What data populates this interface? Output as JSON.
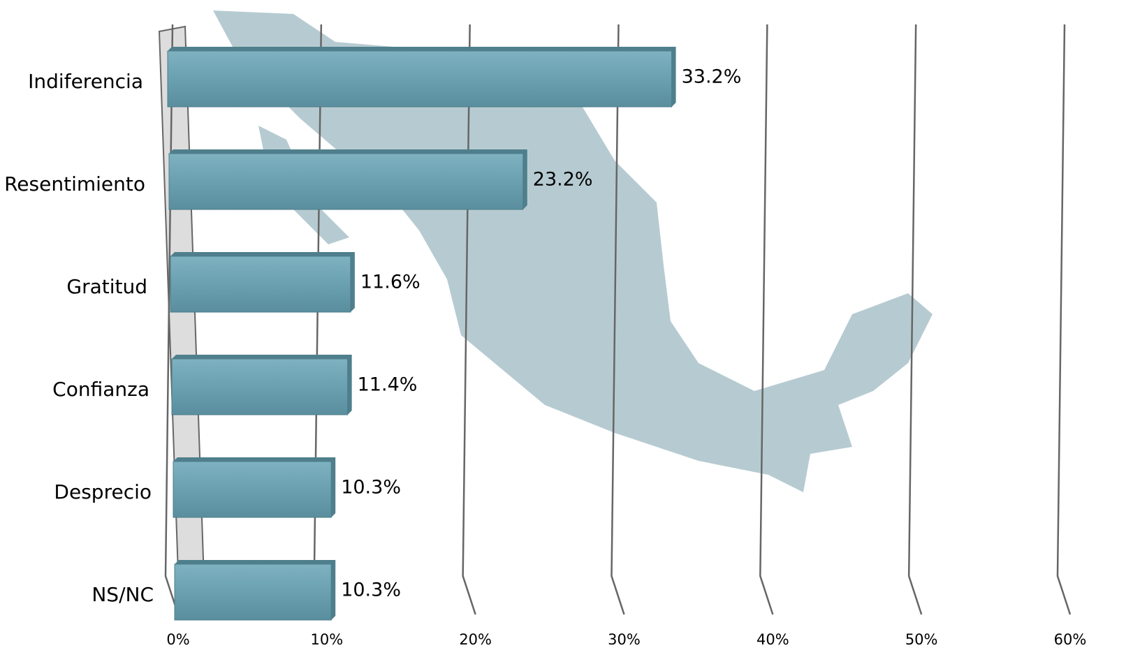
{
  "chart_data": {
    "type": "bar",
    "orientation": "horizontal",
    "categories": [
      "Indiferencia",
      "Resentimiento",
      "Gratitud",
      "Confianza",
      "Desprecio",
      "NS/NC"
    ],
    "values": [
      33.2,
      23.2,
      11.6,
      11.4,
      10.3,
      10.3
    ],
    "value_labels": [
      "33.2%",
      "23.2%",
      "11.6%",
      "11.4%",
      "10.3%",
      "10.3%"
    ],
    "color": "#6aa0b0",
    "xlim": [
      0,
      60
    ],
    "xticks": [
      {
        "value": 0,
        "label": "0%"
      },
      {
        "value": 10,
        "label": "10%"
      },
      {
        "value": 20,
        "label": "20%"
      },
      {
        "value": 30,
        "label": "30%"
      },
      {
        "value": 40,
        "label": "40%"
      },
      {
        "value": 50,
        "label": "50%"
      },
      {
        "value": 60,
        "label": "60%"
      }
    ],
    "grid": true
  }
}
